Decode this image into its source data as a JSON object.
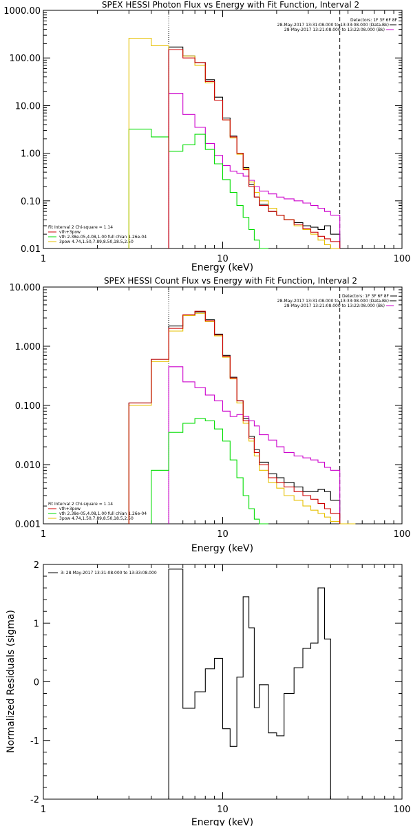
{
  "colors": {
    "black": "#000000",
    "red": "#cc0000",
    "green": "#00dd00",
    "magenta": "#cc00cc",
    "yellow": "#e6c000"
  },
  "chart_data": [
    {
      "type": "step-line",
      "title": "SPEX HESSI Photon Flux vs Energy with Fit Function, Interval 2",
      "xlabel": "Energy (keV)",
      "ylabel": "",
      "xscale": "log",
      "yscale": "log",
      "xlim": [
        1,
        100
      ],
      "ylim": [
        0.01,
        1000
      ],
      "xtick_labels": [
        "1",
        "10",
        "100"
      ],
      "ytick_labels": [
        "0.01",
        "0.10",
        "1.00",
        "10.00",
        "100.00",
        "1000.00"
      ],
      "vlines": [
        {
          "x": 5,
          "style": "dotted"
        },
        {
          "x": 45,
          "style": "dashed"
        }
      ],
      "header_lines": [
        "Detectors: 1F 3F 6F 8F",
        "28-May-2017 13:31:08.000 to 13:33:08.000 (Data-Bk)",
        "28-May-2017 13:21:08.000 to 13:22:08.000 (Bk)"
      ],
      "legend_lines": [
        "Fit Interval 2   Chi-square = 1.14",
        "vth+3pow",
        "vth 2.38e-05,4.08,1.00   full chian 1.26e-04",
        "3pow 4.74,1.50,7.89,8.50,18.5,2.50"
      ],
      "legend_colors": [
        "",
        "red",
        "green",
        "yellow"
      ],
      "edges": [
        3,
        4,
        5,
        6,
        7,
        8,
        9,
        10,
        11,
        12,
        13,
        14,
        15,
        16,
        18,
        20,
        22,
        25,
        28,
        31,
        34,
        37,
        40,
        45
      ],
      "series": [
        {
          "name": "28-May-2017 13:31:08.000 to 13:33:08.000 (Data-Bk)",
          "color": "black",
          "start_bin": 2,
          "values": [
            170,
            110,
            80,
            35,
            15,
            5.5,
            2.3,
            1.0,
            0.5,
            0.22,
            0.12,
            0.085,
            0.06,
            0.05,
            0.04,
            0.035,
            0.03,
            0.028,
            0.025,
            0.03,
            0.02
          ]
        },
        {
          "name": "28-May-2017 13:21:08.000 to 13:22:08.000 (Bk)",
          "color": "magenta",
          "start_bin": 2,
          "values": [
            18,
            6.5,
            3.5,
            1.6,
            0.9,
            0.55,
            0.42,
            0.38,
            0.33,
            0.27,
            0.2,
            0.16,
            0.14,
            0.12,
            0.11,
            0.1,
            0.09,
            0.08,
            0.07,
            0.06,
            0.05
          ]
        },
        {
          "name": "vth 2.38e-05,4.08,1.00   full chian 1.26e-04",
          "color": "green",
          "start_bin": 0,
          "values": [
            3.2,
            2.2,
            1.1,
            1.5,
            2.5,
            1.2,
            0.6,
            0.28,
            0.15,
            0.08,
            0.045,
            0.025,
            0.015,
            0.01
          ]
        },
        {
          "name": "3pow 4.74,1.50,7.89,8.50,18.5,2.50",
          "color": "yellow",
          "start_bin": 0,
          "values": [
            260,
            180,
            150,
            110,
            70,
            30,
            13,
            5,
            2.1,
            0.95,
            0.48,
            0.25,
            0.15,
            0.1,
            0.07,
            0.05,
            0.04,
            0.03,
            0.025,
            0.02,
            0.015,
            0.012,
            0.01
          ]
        },
        {
          "name": "vth+3pow",
          "color": "red",
          "start_bin": 2,
          "values": [
            150,
            100,
            80,
            32,
            13,
            5,
            2.2,
            1.0,
            0.45,
            0.2,
            0.12,
            0.08,
            0.06,
            0.05,
            0.04,
            0.032,
            0.026,
            0.022,
            0.018,
            0.016,
            0.014
          ]
        }
      ]
    },
    {
      "type": "step-line",
      "title": "SPEX HESSI Count Flux vs Energy with Fit Function, Interval 2",
      "xlabel": "Energy (keV)",
      "ylabel": "",
      "xscale": "log",
      "yscale": "log",
      "xlim": [
        1,
        100
      ],
      "ylim": [
        0.001,
        10
      ],
      "xtick_labels": [
        "1",
        "10",
        "100"
      ],
      "ytick_labels": [
        "0.001",
        "0.010",
        "0.100",
        "1.000",
        "10.000"
      ],
      "vlines": [
        {
          "x": 5,
          "style": "dotted"
        },
        {
          "x": 45,
          "style": "dashed"
        }
      ],
      "header_lines": [
        "Detectors: 1F 3F 6F 8F",
        "28-May-2017 13:31:08.000 to 13:33:08.000 (Data-Bk)",
        "28-May-2017 13:21:08.000 to 13:22:08.000 (Bk)"
      ],
      "legend_lines": [
        "Fit Interval 2   Chi-square = 1.14",
        "vth+3pow",
        "vth 2.38e-05,4.08,1.00   full chian 1.26e-04",
        "3pow 4.74,1.50,7.89,8.50,18.5,2.50"
      ],
      "legend_colors": [
        "",
        "red",
        "green",
        "yellow"
      ],
      "edges": [
        3,
        4,
        5,
        6,
        7,
        8,
        9,
        10,
        11,
        12,
        13,
        14,
        15,
        16,
        18,
        20,
        22,
        25,
        28,
        31,
        34,
        37,
        40,
        45,
        50,
        55
      ],
      "series": [
        {
          "name": "28-May-2017 13:31:08.000 to 13:33:08.000 (Data-Bk)",
          "color": "black",
          "start_bin": 0,
          "values": [
            0.11,
            0.6,
            2.2,
            3.3,
            3.8,
            2.8,
            1.6,
            0.7,
            0.3,
            0.12,
            0.06,
            0.03,
            0.018,
            0.011,
            0.007,
            0.006,
            0.005,
            0.0042,
            0.0035,
            0.0035,
            0.0038,
            0.0035,
            0.0025
          ]
        },
        {
          "name": "28-May-2017 13:21:08.000 to 13:22:08.000 (Bk)",
          "color": "magenta",
          "start_bin": 2,
          "values": [
            0.45,
            0.25,
            0.2,
            0.15,
            0.12,
            0.08,
            0.065,
            0.07,
            0.065,
            0.055,
            0.045,
            0.032,
            0.026,
            0.02,
            0.016,
            0.014,
            0.013,
            0.012,
            0.011,
            0.009,
            0.008
          ]
        },
        {
          "name": "vth 2.38e-05,4.08,1.00   full chian 1.26e-04",
          "color": "green",
          "start_bin": 1,
          "values": [
            0.008,
            0.035,
            0.05,
            0.06,
            0.055,
            0.04,
            0.025,
            0.012,
            0.006,
            0.003,
            0.0018,
            0.0012,
            0.001
          ]
        },
        {
          "name": "3pow 4.74,1.50,7.89,8.50,18.5,2.50",
          "color": "yellow",
          "start_bin": 0,
          "values": [
            0.1,
            0.55,
            1.8,
            3.3,
            3.6,
            2.6,
            1.5,
            0.65,
            0.28,
            0.11,
            0.05,
            0.025,
            0.014,
            0.008,
            0.005,
            0.004,
            0.003,
            0.0025,
            0.002,
            0.0017,
            0.0015,
            0.0013,
            0.0011,
            0.001,
            0.001
          ]
        },
        {
          "name": "vth+3pow",
          "color": "red",
          "start_bin": 0,
          "values": [
            0.11,
            0.6,
            2.0,
            3.4,
            3.9,
            2.7,
            1.55,
            0.68,
            0.29,
            0.12,
            0.055,
            0.028,
            0.016,
            0.01,
            0.006,
            0.005,
            0.0042,
            0.0035,
            0.003,
            0.0026,
            0.0022,
            0.0018,
            0.0015
          ]
        }
      ]
    },
    {
      "type": "step-line",
      "title": "",
      "xlabel": "Energy (keV)",
      "ylabel": "Normalized Residuals (sigma)",
      "xscale": "log",
      "yscale": "linear",
      "xlim": [
        1,
        100
      ],
      "ylim": [
        -2,
        2
      ],
      "xtick_labels": [
        "1",
        "10",
        "100"
      ],
      "ytick_labels": [
        "-2",
        "-1",
        "0",
        "1",
        "2"
      ],
      "legend_lines": [
        "3: 28-May-2017 13:31:08.000 to 13:33:08.000"
      ],
      "edges": [
        5,
        6,
        7,
        8,
        9,
        10,
        11,
        12,
        13,
        14,
        15,
        16,
        18,
        20,
        22,
        25,
        28,
        31,
        34,
        37,
        40,
        45
      ],
      "series": [
        {
          "name": "3: 28-May-2017 13:31:08.000 to 13:33:08.000",
          "color": "black",
          "start_bin": 0,
          "values": [
            1.92,
            -0.45,
            -0.17,
            0.22,
            0.4,
            -0.8,
            -1.1,
            0.08,
            1.45,
            0.92,
            -0.44,
            -0.05,
            -0.87,
            -0.92,
            -0.2,
            0.24,
            0.57,
            0.66,
            1.6,
            0.73
          ]
        }
      ]
    }
  ]
}
